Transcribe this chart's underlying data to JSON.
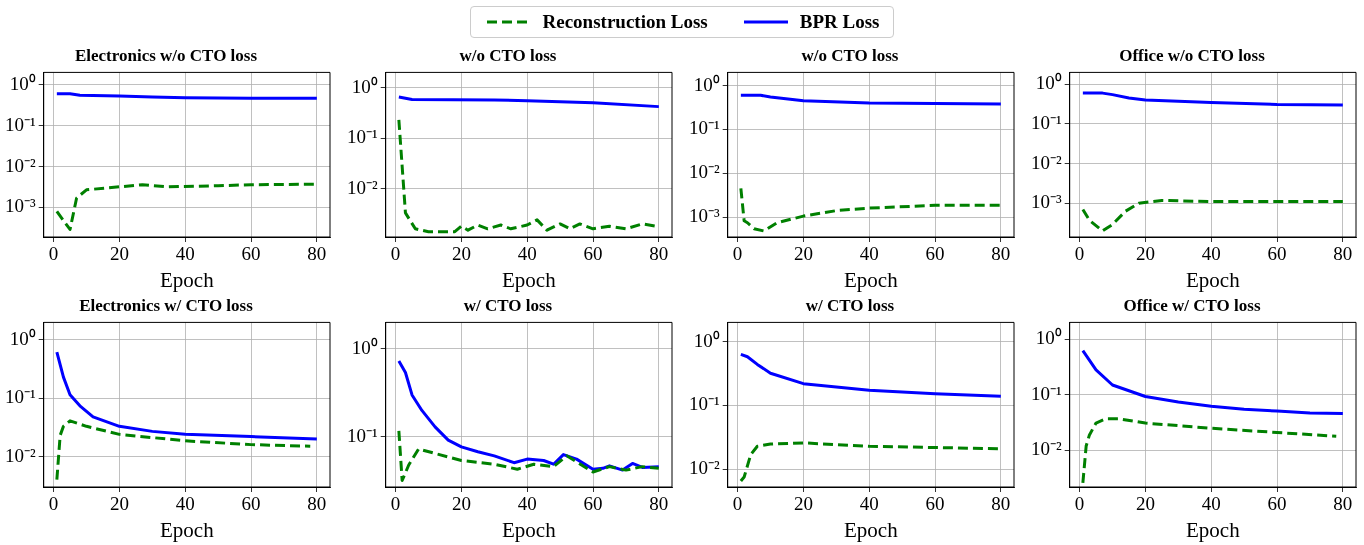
{
  "chart_data": [
    {
      "type": "line",
      "title": "Electronics w/o CTO loss",
      "xlabel": "Epoch",
      "log": "y",
      "grid": true,
      "legend": "top",
      "marker": "none",
      "xlim": [
        -3,
        84
      ],
      "xticks": [
        0,
        20,
        40,
        60,
        80
      ],
      "ylim": [
        0.00019,
        2
      ],
      "yticks": [
        {
          "value": 0.001,
          "label": "10⁻³"
        },
        {
          "value": 0.01,
          "label": "10⁻²"
        },
        {
          "value": 0.1,
          "label": "10⁻¹"
        },
        {
          "value": 1,
          "label": "10⁰"
        }
      ],
      "series": [
        {
          "name": "Reconstruction Loss",
          "color": "#008000",
          "line_style": "dashed",
          "x": [
            1,
            5,
            7,
            10,
            20,
            27,
            35,
            50,
            60,
            80
          ],
          "values": [
            0.0008,
            0.00029,
            0.0017,
            0.0027,
            0.0032,
            0.0036,
            0.0032,
            0.0034,
            0.0036,
            0.0037
          ]
        },
        {
          "name": "BPR Loss",
          "color": "#0000ff",
          "line_style": "solid",
          "x": [
            1,
            5,
            8,
            20,
            30,
            40,
            60,
            80
          ],
          "values": [
            0.6,
            0.6,
            0.55,
            0.53,
            0.5,
            0.48,
            0.47,
            0.47
          ]
        }
      ]
    },
    {
      "type": "line",
      "title": "w/o CTO loss",
      "xlabel": "Epoch",
      "log": "y",
      "grid": true,
      "marker": "none",
      "xlim": [
        -3,
        84
      ],
      "xticks": [
        0,
        20,
        40,
        60,
        80
      ],
      "ylim": [
        0.0011,
        2
      ],
      "yticks": [
        {
          "value": 0.01,
          "label": "10⁻²"
        },
        {
          "value": 0.1,
          "label": "10⁻¹"
        },
        {
          "value": 1,
          "label": "10⁰"
        }
      ],
      "series": [
        {
          "color": "#008000",
          "line_style": "dashed",
          "x": [
            1,
            3,
            6,
            10,
            18,
            20,
            22,
            25,
            28,
            32,
            35,
            40,
            43,
            46,
            50,
            53,
            56,
            60,
            65,
            70,
            75,
            80
          ],
          "values": [
            0.23,
            0.0033,
            0.0016,
            0.0014,
            0.0014,
            0.0018,
            0.0015,
            0.0019,
            0.0016,
            0.0019,
            0.0016,
            0.0019,
            0.0024,
            0.0015,
            0.002,
            0.0016,
            0.002,
            0.0016,
            0.0018,
            0.0016,
            0.002,
            0.00175
          ]
        },
        {
          "color": "#0000ff",
          "line_style": "solid",
          "x": [
            1,
            5,
            30,
            40,
            60,
            80
          ],
          "values": [
            0.65,
            0.58,
            0.57,
            0.55,
            0.5,
            0.42
          ]
        }
      ]
    },
    {
      "type": "line",
      "title": "w/o CTO loss",
      "xlabel": "Epoch",
      "log": "y",
      "grid": true,
      "marker": "none",
      "xlim": [
        -3,
        84
      ],
      "xticks": [
        0,
        20,
        40,
        60,
        80
      ],
      "ylim": [
        0.00035,
        2
      ],
      "yticks": [
        {
          "value": 0.001,
          "label": "10⁻³"
        },
        {
          "value": 0.01,
          "label": "10⁻²"
        },
        {
          "value": 0.1,
          "label": "10⁻¹"
        },
        {
          "value": 1,
          "label": "10⁰"
        }
      ],
      "series": [
        {
          "color": "#008000",
          "line_style": "dashed",
          "x": [
            1,
            2,
            3,
            5,
            8,
            12,
            20,
            30,
            40,
            60,
            80
          ],
          "values": [
            0.0045,
            0.00082,
            0.00074,
            0.00054,
            0.00048,
            0.00074,
            0.00105,
            0.0014,
            0.0016,
            0.00185,
            0.00185
          ]
        },
        {
          "color": "#0000ff",
          "line_style": "solid",
          "x": [
            1,
            7,
            10,
            20,
            40,
            80
          ],
          "values": [
            0.6,
            0.6,
            0.55,
            0.45,
            0.4,
            0.38
          ]
        }
      ]
    },
    {
      "type": "line",
      "title": "Office w/o CTO loss",
      "xlabel": "Epoch",
      "log": "y",
      "grid": true,
      "marker": "none",
      "xlim": [
        -3,
        84
      ],
      "xticks": [
        0,
        20,
        40,
        60,
        80
      ],
      "ylim": [
        0.00014,
        2
      ],
      "yticks": [
        {
          "value": 0.001,
          "label": "10⁻³"
        },
        {
          "value": 0.01,
          "label": "10⁻²"
        },
        {
          "value": 0.1,
          "label": "10⁻¹"
        },
        {
          "value": 1,
          "label": "10⁰"
        }
      ],
      "series": [
        {
          "color": "#008000",
          "line_style": "dashed",
          "x": [
            1,
            3,
            7,
            10,
            14,
            18,
            25,
            40,
            80
          ],
          "values": [
            0.00069,
            0.00037,
            0.0002,
            0.00029,
            0.00063,
            0.001,
            0.00117,
            0.0011,
            0.0011
          ]
        },
        {
          "color": "#0000ff",
          "line_style": "solid",
          "x": [
            1,
            7,
            10,
            15,
            20,
            40,
            60,
            80
          ],
          "values": [
            0.6,
            0.6,
            0.55,
            0.45,
            0.4,
            0.35,
            0.31,
            0.3
          ]
        }
      ]
    },
    {
      "type": "line",
      "title": "Electronics w/ CTO loss",
      "xlabel": "Epoch",
      "log": "y",
      "grid": true,
      "marker": "none",
      "xlim": [
        -3,
        84
      ],
      "xticks": [
        0,
        20,
        40,
        60,
        80
      ],
      "ylim": [
        0.003,
        2
      ],
      "yticks": [
        {
          "value": 0.01,
          "label": "10⁻²"
        },
        {
          "value": 0.1,
          "label": "10⁻¹"
        },
        {
          "value": 1,
          "label": "10⁰"
        }
      ],
      "series": [
        {
          "color": "#008000",
          "line_style": "dashed",
          "x": [
            1,
            2,
            3,
            5,
            10,
            20,
            40,
            60,
            78
          ],
          "values": [
            0.004,
            0.023,
            0.033,
            0.041,
            0.033,
            0.024,
            0.0186,
            0.016,
            0.015
          ]
        },
        {
          "color": "#0000ff",
          "line_style": "solid",
          "x": [
            1,
            3,
            5,
            8,
            12,
            20,
            30,
            40,
            60,
            80
          ],
          "values": [
            0.62,
            0.23,
            0.115,
            0.074,
            0.048,
            0.033,
            0.027,
            0.024,
            0.022,
            0.02
          ]
        }
      ]
    },
    {
      "type": "line",
      "title": "w/ CTO loss",
      "xlabel": "Epoch",
      "log": "y",
      "grid": true,
      "marker": "none",
      "xlim": [
        -3,
        84
      ],
      "xticks": [
        0,
        20,
        40,
        60,
        80
      ],
      "ylim": [
        0.027,
        2
      ],
      "yticks": [
        {
          "value": 0.1,
          "label": "10⁻¹"
        },
        {
          "value": 1,
          "label": "10⁰"
        }
      ],
      "series": [
        {
          "color": "#008000",
          "line_style": "dashed",
          "x": [
            1,
            2,
            4,
            7,
            12,
            20,
            30,
            37,
            42,
            48,
            52,
            60,
            65,
            70,
            75,
            80
          ],
          "values": [
            0.117,
            0.032,
            0.048,
            0.073,
            0.065,
            0.054,
            0.049,
            0.043,
            0.049,
            0.046,
            0.061,
            0.04,
            0.046,
            0.042,
            0.046,
            0.044
          ]
        },
        {
          "color": "#0000ff",
          "line_style": "solid",
          "x": [
            1,
            3,
            5,
            8,
            12,
            16,
            20,
            25,
            30,
            36,
            40,
            45,
            48,
            51,
            55,
            60,
            63,
            65,
            69,
            72,
            75,
            80
          ],
          "values": [
            0.73,
            0.54,
            0.3,
            0.2,
            0.13,
            0.092,
            0.077,
            0.068,
            0.061,
            0.051,
            0.056,
            0.054,
            0.049,
            0.063,
            0.056,
            0.043,
            0.044,
            0.047,
            0.042,
            0.05,
            0.045,
            0.046
          ]
        }
      ]
    },
    {
      "type": "line",
      "title": "w/ CTO loss",
      "xlabel": "Epoch",
      "log": "y",
      "grid": true,
      "marker": "none",
      "xlim": [
        -3,
        84
      ],
      "xticks": [
        0,
        20,
        40,
        60,
        80
      ],
      "ylim": [
        0.0053,
        2
      ],
      "yticks": [
        {
          "value": 0.01,
          "label": "10⁻²"
        },
        {
          "value": 0.1,
          "label": "10⁻¹"
        },
        {
          "value": 1,
          "label": "10⁰"
        }
      ],
      "series": [
        {
          "color": "#008000",
          "line_style": "dashed",
          "x": [
            1,
            2,
            4,
            6,
            10,
            20,
            40,
            60,
            80
          ],
          "values": [
            0.0066,
            0.0076,
            0.017,
            0.023,
            0.025,
            0.026,
            0.023,
            0.022,
            0.021
          ]
        },
        {
          "color": "#0000ff",
          "line_style": "solid",
          "x": [
            1,
            3,
            6,
            10,
            20,
            40,
            60,
            80
          ],
          "values": [
            0.63,
            0.58,
            0.44,
            0.32,
            0.22,
            0.174,
            0.153,
            0.14
          ]
        }
      ]
    },
    {
      "type": "line",
      "title": "Office w/ CTO loss",
      "xlabel": "Epoch",
      "log": "y",
      "grid": true,
      "marker": "none",
      "xlim": [
        -3,
        84
      ],
      "xticks": [
        0,
        20,
        40,
        60,
        80
      ],
      "ylim": [
        0.0022,
        2
      ],
      "yticks": [
        {
          "value": 0.01,
          "label": "10⁻²"
        },
        {
          "value": 0.1,
          "label": "10⁻¹"
        },
        {
          "value": 1,
          "label": "10⁰"
        }
      ],
      "series": [
        {
          "color": "#008000",
          "line_style": "dashed",
          "x": [
            1,
            2,
            3,
            5,
            8,
            12,
            20,
            40,
            60,
            78
          ],
          "values": [
            0.0026,
            0.012,
            0.019,
            0.031,
            0.037,
            0.037,
            0.031,
            0.025,
            0.021,
            0.018
          ]
        },
        {
          "color": "#0000ff",
          "line_style": "solid",
          "x": [
            1,
            5,
            10,
            20,
            30,
            40,
            50,
            60,
            70,
            80
          ],
          "values": [
            0.62,
            0.28,
            0.15,
            0.093,
            0.074,
            0.062,
            0.055,
            0.051,
            0.047,
            0.046
          ]
        }
      ]
    }
  ]
}
